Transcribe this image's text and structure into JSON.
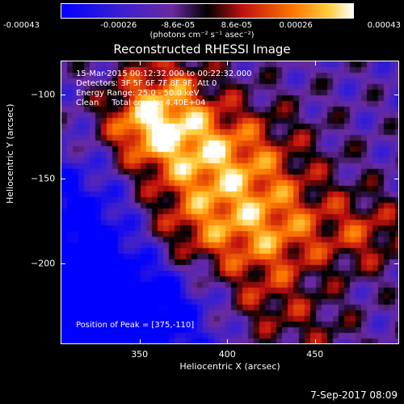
{
  "colorbar": {
    "tick_labels": [
      "-0.00043",
      "-0.00026",
      "-8.6e-05",
      "8.6e-05",
      "0.00026",
      "0.00043"
    ],
    "tick_values": [
      -0.00043,
      -0.00026,
      -8.6e-05,
      8.6e-05,
      0.00026,
      0.00043
    ],
    "range": [
      -0.00043,
      0.00043
    ],
    "unit_label": "(photons cm⁻² s⁻¹ asec⁻²)"
  },
  "chart_data": {
    "type": "heatmap",
    "title": "Reconstructed RHESSI Image",
    "xlabel": "Heliocentric X (arcsec)",
    "ylabel": "Heliocentric Y (arcsec)",
    "xlim": [
      305,
      498
    ],
    "ylim": [
      -248,
      -80
    ],
    "xticks": [
      350,
      400,
      450
    ],
    "yticks": [
      -100,
      -150,
      -200
    ],
    "peak": [
      375,
      -110
    ],
    "annotations": {
      "time_range": "15-Mar-2015 00:12:32.000 to 00:22:32.000",
      "detectors": "Detectors: 3F 5F 6F 7F 8F 9F, Att 0",
      "energy": "Energy Range: 25.0 - 50.0 keV",
      "clean": "Clean     Total counts: 4.40E+04",
      "peak_position": "Position of Peak = [375,-110]"
    }
  },
  "footer": {
    "date": "7-Sep-2017 08:09"
  }
}
